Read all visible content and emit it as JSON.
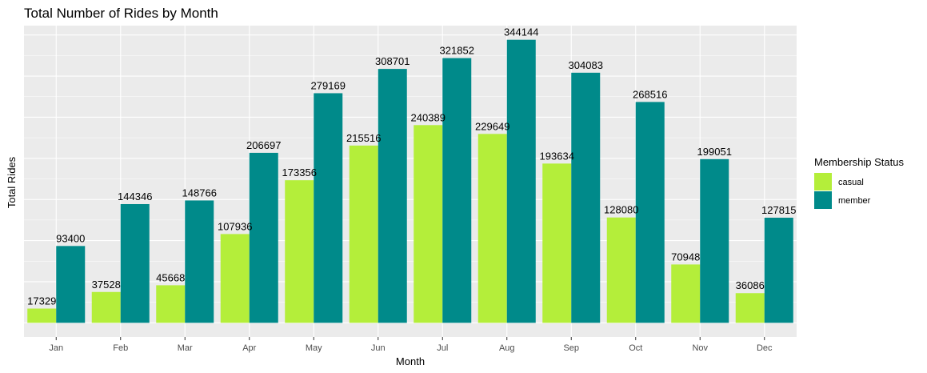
{
  "chart_data": {
    "type": "bar",
    "title": "Total Number of Rides by Month",
    "xlabel": "Month",
    "ylabel": "Total Rides",
    "categories": [
      "Jan",
      "Feb",
      "Mar",
      "Apr",
      "May",
      "Jun",
      "Jul",
      "Aug",
      "Sep",
      "Oct",
      "Nov",
      "Dec"
    ],
    "series": [
      {
        "name": "casual",
        "color": "#b4ee3a",
        "values": [
          17329,
          37528,
          45668,
          107936,
          173356,
          215516,
          240389,
          229649,
          193634,
          128080,
          70948,
          36086
        ]
      },
      {
        "name": "member",
        "color": "#008a8a",
        "values": [
          93400,
          144346,
          148766,
          206697,
          279169,
          308701,
          321852,
          344144,
          304083,
          268516,
          199051,
          127815
        ]
      }
    ],
    "ylim": [
      -17207,
      361351
    ],
    "y_tick_labels_shown": false,
    "grid": true,
    "legend": {
      "title": "Membership Status",
      "position": "right"
    },
    "panel_background": "#ebebeb",
    "grid_color": "#ffffff"
  }
}
